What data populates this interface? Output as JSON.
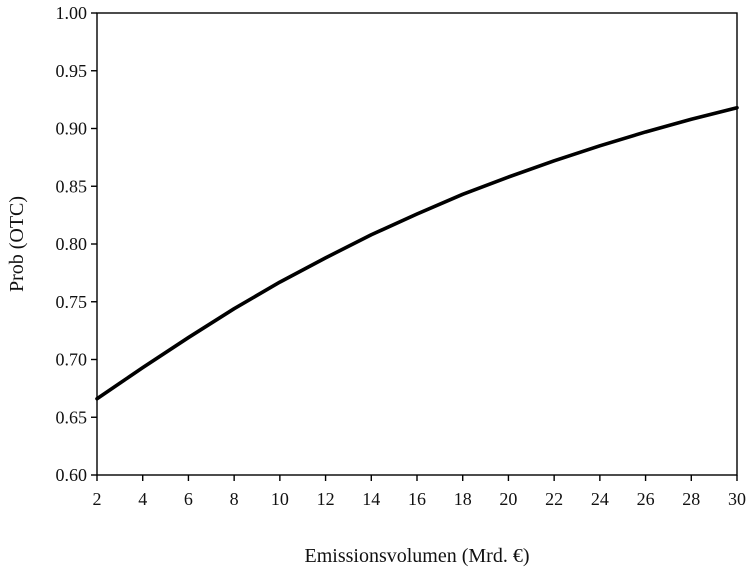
{
  "chart_data": {
    "type": "line",
    "title": "",
    "xlabel": "Emissionsvolumen (Mrd. €)",
    "ylabel": "Prob  (OTC)",
    "xlim": [
      2,
      30
    ],
    "ylim": [
      0.6,
      1.0
    ],
    "xticks": [
      "2",
      "4",
      "6",
      "8",
      "10",
      "12",
      "14",
      "16",
      "18",
      "20",
      "22",
      "24",
      "26",
      "28",
      "30"
    ],
    "yticks": [
      "0.60",
      "0.65",
      "0.70",
      "0.75",
      "0.80",
      "0.85",
      "0.90",
      "0.95",
      "1.00"
    ],
    "grid": false,
    "legend": "none",
    "series": [
      {
        "x": [
          2,
          4,
          6,
          8,
          10,
          12,
          14,
          16,
          18,
          20,
          22,
          24,
          26,
          28,
          30
        ],
        "y": [
          0.666,
          0.693,
          0.719,
          0.744,
          0.767,
          0.788,
          0.808,
          0.826,
          0.843,
          0.858,
          0.872,
          0.885,
          0.897,
          0.908,
          0.918
        ],
        "color": "#000000"
      }
    ]
  }
}
